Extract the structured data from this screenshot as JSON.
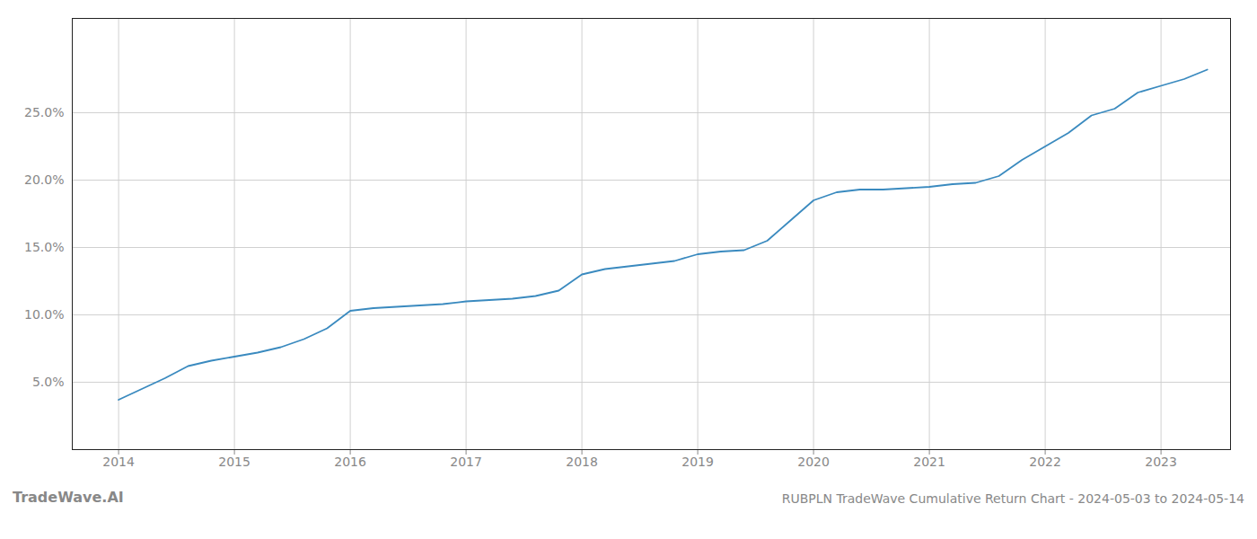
{
  "chart_data": {
    "type": "line",
    "title": "RUBPLN TradeWave Cumulative Return Chart - 2024-05-03 to 2024-05-14",
    "annotations": [
      "TradeWave.AI"
    ],
    "x": [
      2014.0,
      2014.2,
      2014.4,
      2014.6,
      2014.8,
      2015.0,
      2015.2,
      2015.4,
      2015.6,
      2015.8,
      2016.0,
      2016.2,
      2016.4,
      2016.6,
      2016.8,
      2017.0,
      2017.2,
      2017.4,
      2017.6,
      2017.8,
      2018.0,
      2018.2,
      2018.4,
      2018.6,
      2018.8,
      2019.0,
      2019.2,
      2019.4,
      2019.6,
      2019.8,
      2020.0,
      2020.2,
      2020.4,
      2020.6,
      2020.8,
      2021.0,
      2021.2,
      2021.4,
      2021.6,
      2021.8,
      2022.0,
      2022.2,
      2022.4,
      2022.6,
      2022.8,
      2023.0,
      2023.2,
      2023.4
    ],
    "values": [
      3.7,
      4.5,
      5.3,
      6.2,
      6.6,
      6.9,
      7.2,
      7.6,
      8.2,
      9.0,
      10.3,
      10.5,
      10.6,
      10.7,
      10.8,
      11.0,
      11.1,
      11.2,
      11.4,
      11.8,
      13.0,
      13.4,
      13.6,
      13.8,
      14.0,
      14.5,
      14.7,
      14.8,
      15.5,
      17.0,
      18.5,
      19.1,
      19.3,
      19.3,
      19.4,
      19.5,
      19.7,
      19.8,
      20.3,
      21.5,
      22.5,
      23.5,
      24.8,
      25.3,
      26.5,
      27.0,
      27.5,
      28.2
    ],
    "color": "#3a8abf",
    "xlim": [
      2013.6,
      2023.6
    ],
    "xticks": [
      2014,
      2015,
      2016,
      2017,
      2018,
      2019,
      2020,
      2021,
      2022,
      2023
    ],
    "ylim": [
      0,
      32
    ],
    "yticks": [
      {
        "value": 5.0,
        "label": "5.0%"
      },
      {
        "value": 10.0,
        "label": "10.0%"
      },
      {
        "value": 15.0,
        "label": "15.0%"
      },
      {
        "value": 20.0,
        "label": "20.0%"
      },
      {
        "value": 25.0,
        "label": "25.0%"
      }
    ],
    "grid": true
  }
}
